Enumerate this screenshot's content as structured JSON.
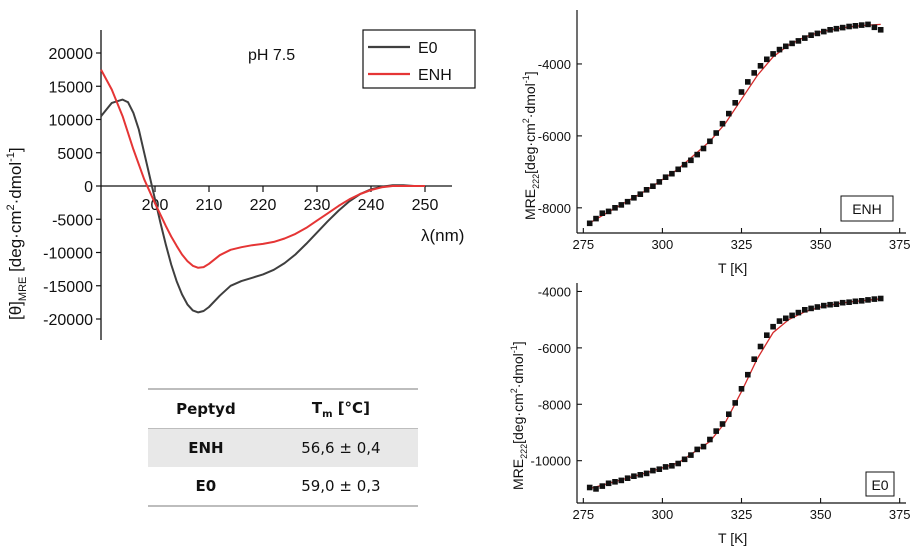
{
  "colors": {
    "e0": "#3f3f3f",
    "enh": "#e53535",
    "marker": "#111111",
    "fit": "#d42b2b",
    "axis": "#111111"
  },
  "cd_panel": {
    "title": "pH 7.5",
    "ylabel_symbol": "[θ]",
    "ylabel_sub": "MRE",
    "ylabel_units_pre": " [deg·cm",
    "ylabel_units_sup1": "2",
    "ylabel_units_mid": "·dmol",
    "ylabel_units_sup2": "-1",
    "ylabel_units_post": "]",
    "xlabel": "λ(nm)",
    "legend": [
      "E0",
      "ENH"
    ]
  },
  "tm_table": {
    "header_col1": "Peptyd",
    "header_col2_main": "T",
    "header_col2_sub": "m",
    "header_col2_unit": " [°C]",
    "rows": [
      {
        "name": "ENH",
        "tm": "56,6 ± 0,4"
      },
      {
        "name": "E0",
        "tm": "59,0 ± 0,3"
      }
    ]
  },
  "melt_labels": {
    "ylabel_pre": "MRE",
    "ylabel_sub": "222",
    "ylabel_units_pre": "[deg·cm",
    "ylabel_units_sup1": "2",
    "ylabel_units_mid": "·dmol",
    "ylabel_units_sup2": "-1",
    "ylabel_units_post": "]",
    "xlabel": "T [K]",
    "badge_top": "ENH",
    "badge_bottom": "E0"
  },
  "chart_data": [
    {
      "type": "line",
      "title": "pH 7.5",
      "xlabel": "λ(nm)",
      "ylabel": "[θ]MRE [deg·cm2·dmol-1]",
      "xlim": [
        190,
        255
      ],
      "ylim": [
        -20000,
        20000
      ],
      "xticks": [
        200,
        210,
        220,
        230,
        240,
        250
      ],
      "yticks": [
        -20000,
        -15000,
        -10000,
        -5000,
        0,
        5000,
        10000,
        15000,
        20000
      ],
      "legend_position": "top-right",
      "grid": false,
      "series": [
        {
          "name": "E0",
          "x": [
            190,
            192,
            194,
            195,
            196,
            197,
            198,
            199,
            200,
            201,
            202,
            203,
            204,
            205,
            206,
            207,
            208,
            209,
            210,
            212,
            214,
            216,
            218,
            220,
            222,
            224,
            226,
            228,
            230,
            232,
            234,
            236,
            238,
            240,
            242,
            244,
            246,
            248,
            250
          ],
          "y": [
            10500,
            12500,
            13000,
            12600,
            11000,
            8500,
            5000,
            1500,
            -2000,
            -5500,
            -8800,
            -11800,
            -14300,
            -16300,
            -17800,
            -18700,
            -19000,
            -18800,
            -18200,
            -16500,
            -15000,
            -14300,
            -13800,
            -13300,
            -12600,
            -11600,
            -10300,
            -8700,
            -7000,
            -5300,
            -3700,
            -2300,
            -1200,
            -500,
            -100,
            100,
            100,
            0,
            0
          ]
        },
        {
          "name": "ENH",
          "x": [
            190,
            192,
            194,
            196,
            198,
            200,
            201,
            202,
            203,
            204,
            205,
            206,
            207,
            208,
            209,
            210,
            212,
            214,
            216,
            218,
            220,
            222,
            224,
            226,
            228,
            230,
            232,
            234,
            236,
            238,
            240,
            242,
            244,
            246,
            248,
            250
          ],
          "y": [
            17500,
            14500,
            10500,
            5500,
            1000,
            -2600,
            -4300,
            -6000,
            -7600,
            -9000,
            -10300,
            -11300,
            -12000,
            -12300,
            -12200,
            -11700,
            -10400,
            -9600,
            -9200,
            -8900,
            -8700,
            -8400,
            -7900,
            -7200,
            -6300,
            -5200,
            -4100,
            -3000,
            -2000,
            -1200,
            -600,
            -200,
            0,
            0,
            0,
            0
          ]
        }
      ]
    },
    {
      "type": "scatter",
      "title": "",
      "xlabel": "T [K]",
      "ylabel": "MRE222[deg·cm2·dmol-1]",
      "xlim": [
        273,
        377
      ],
      "ylim": [
        -8700,
        -2500
      ],
      "xticks": [
        275,
        300,
        325,
        350,
        375
      ],
      "yticks": [
        -8000,
        -6000,
        -4000
      ],
      "legend_position": "bottom-right",
      "grid": false,
      "series": [
        {
          "name": "ENH",
          "x": [
            277,
            279,
            281,
            283,
            285,
            287,
            289,
            291,
            293,
            295,
            297,
            299,
            301,
            303,
            305,
            307,
            309,
            311,
            313,
            315,
            317,
            319,
            321,
            323,
            325,
            327,
            329,
            331,
            333,
            335,
            337,
            339,
            341,
            343,
            345,
            347,
            349,
            351,
            353,
            355,
            357,
            359,
            361,
            363,
            365,
            367,
            369
          ],
          "y": [
            -8430,
            -8300,
            -8150,
            -8100,
            -8000,
            -7920,
            -7830,
            -7720,
            -7620,
            -7500,
            -7400,
            -7280,
            -7150,
            -7050,
            -6930,
            -6800,
            -6680,
            -6520,
            -6350,
            -6150,
            -5920,
            -5660,
            -5380,
            -5080,
            -4780,
            -4500,
            -4250,
            -4050,
            -3870,
            -3720,
            -3600,
            -3510,
            -3430,
            -3360,
            -3280,
            -3200,
            -3150,
            -3100,
            -3050,
            -3020,
            -2990,
            -2960,
            -2940,
            -2920,
            -2900,
            -2980,
            -3050
          ]
        },
        {
          "name": "ENH fit",
          "x": [
            277,
            285,
            295,
            305,
            315,
            320,
            325,
            330,
            335,
            340,
            345,
            350,
            355,
            360,
            365,
            369
          ],
          "y": [
            -8420,
            -8010,
            -7510,
            -6920,
            -6150,
            -5640,
            -4980,
            -4320,
            -3800,
            -3470,
            -3250,
            -3110,
            -3020,
            -2960,
            -2920,
            -2900
          ]
        }
      ]
    },
    {
      "type": "scatter",
      "title": "",
      "xlabel": "T [K]",
      "ylabel": "MRE222[deg·cm2·dmol-1]",
      "xlim": [
        273,
        377
      ],
      "ylim": [
        -11500,
        -3700
      ],
      "xticks": [
        275,
        300,
        325,
        350,
        375
      ],
      "yticks": [
        -10000,
        -8000,
        -6000,
        -4000
      ],
      "legend_position": "bottom-right",
      "grid": false,
      "series": [
        {
          "name": "E0",
          "x": [
            277,
            279,
            281,
            283,
            285,
            287,
            289,
            291,
            293,
            295,
            297,
            299,
            301,
            303,
            305,
            307,
            309,
            311,
            313,
            315,
            317,
            319,
            321,
            323,
            325,
            327,
            329,
            331,
            333,
            335,
            337,
            339,
            341,
            343,
            345,
            347,
            349,
            351,
            353,
            355,
            357,
            359,
            361,
            363,
            365,
            367,
            369
          ],
          "y": [
            -10950,
            -11000,
            -10900,
            -10800,
            -10750,
            -10700,
            -10620,
            -10550,
            -10500,
            -10450,
            -10350,
            -10300,
            -10220,
            -10180,
            -10100,
            -9950,
            -9800,
            -9600,
            -9500,
            -9250,
            -8950,
            -8700,
            -8350,
            -7950,
            -7450,
            -6950,
            -6400,
            -5950,
            -5550,
            -5250,
            -5050,
            -4950,
            -4850,
            -4750,
            -4650,
            -4600,
            -4550,
            -4500,
            -4470,
            -4450,
            -4400,
            -4380,
            -4350,
            -4330,
            -4300,
            -4270,
            -4250
          ]
        },
        {
          "name": "E0 fit",
          "x": [
            277,
            285,
            295,
            305,
            315,
            320,
            325,
            330,
            335,
            340,
            345,
            350,
            355,
            360,
            365,
            369
          ],
          "y": [
            -10990,
            -10740,
            -10430,
            -10080,
            -9320,
            -8620,
            -7550,
            -6380,
            -5460,
            -4990,
            -4720,
            -4550,
            -4440,
            -4360,
            -4310,
            -4260
          ]
        }
      ]
    }
  ]
}
